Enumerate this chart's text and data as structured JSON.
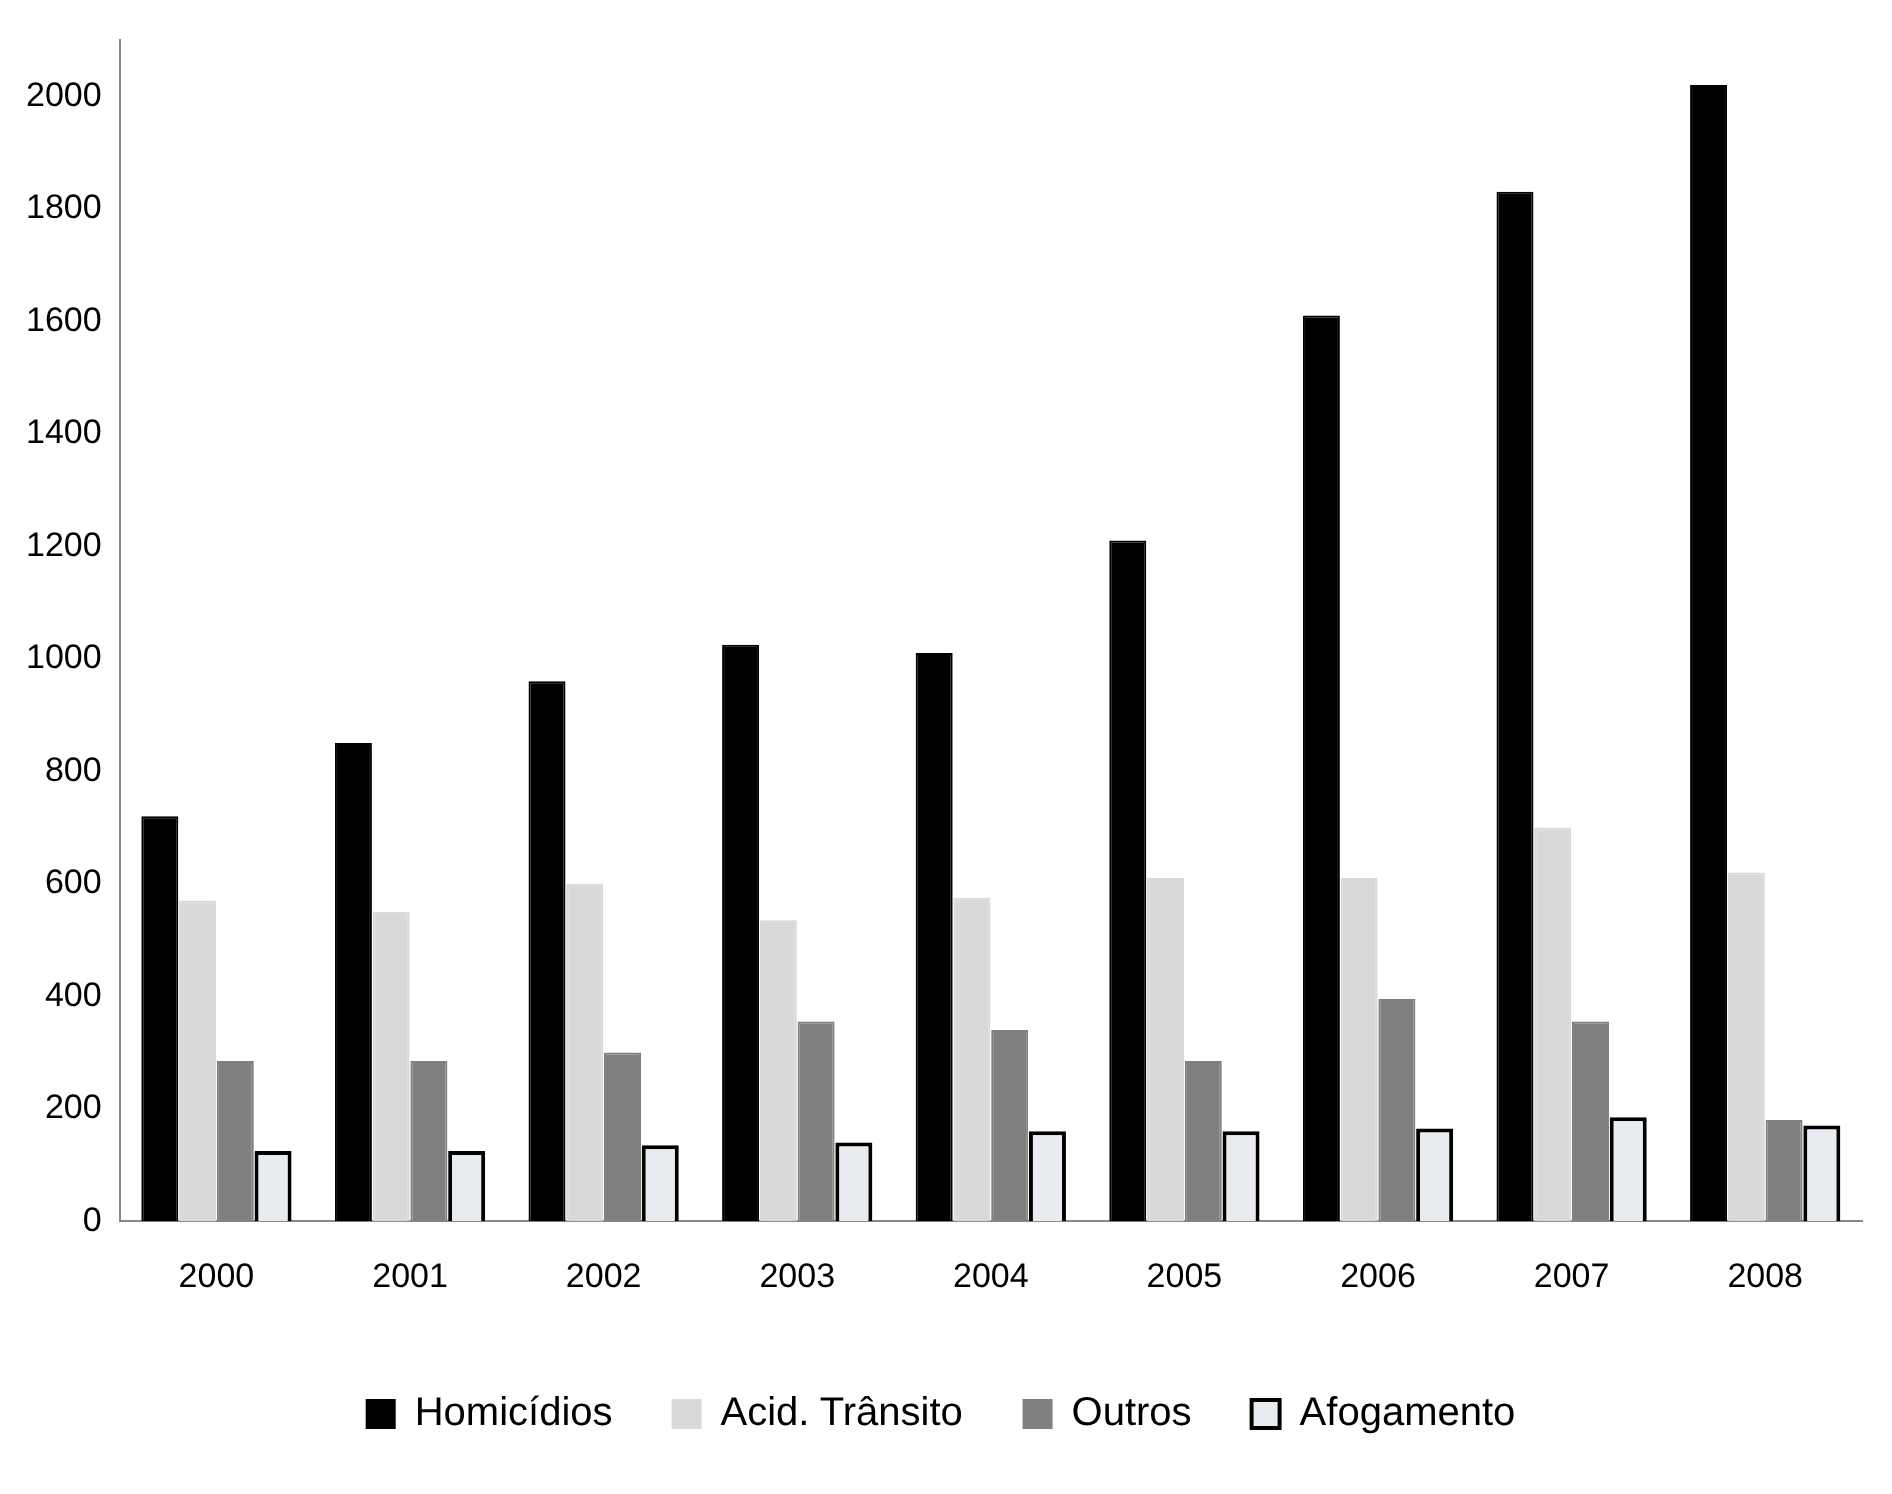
{
  "chart_data": {
    "type": "bar",
    "categories": [
      "2000",
      "2001",
      "2002",
      "2003",
      "2004",
      "2005",
      "2006",
      "2007",
      "2008"
    ],
    "series": [
      {
        "name": "Homicídios",
        "color": "#000000",
        "values": [
          720,
          850,
          960,
          1025,
          1010,
          1210,
          1610,
          1830,
          2020
        ]
      },
      {
        "name": "Acid. Trânsito",
        "color": "#d9d9d9",
        "values": [
          570,
          550,
          600,
          535,
          575,
          610,
          610,
          700,
          620
        ]
      },
      {
        "name": "Outros",
        "color": "#808080",
        "values": [
          285,
          285,
          300,
          355,
          340,
          285,
          395,
          355,
          180
        ]
      },
      {
        "name": "Afogamento",
        "color": "#e8ecf0",
        "values": [
          125,
          125,
          135,
          140,
          160,
          160,
          165,
          185,
          170
        ]
      }
    ],
    "ylim": [
      0,
      2100
    ],
    "yticks": [
      0,
      200,
      400,
      600,
      800,
      1000,
      1200,
      1400,
      1600,
      1800,
      2000
    ],
    "grid": false,
    "legend": "bottom"
  }
}
